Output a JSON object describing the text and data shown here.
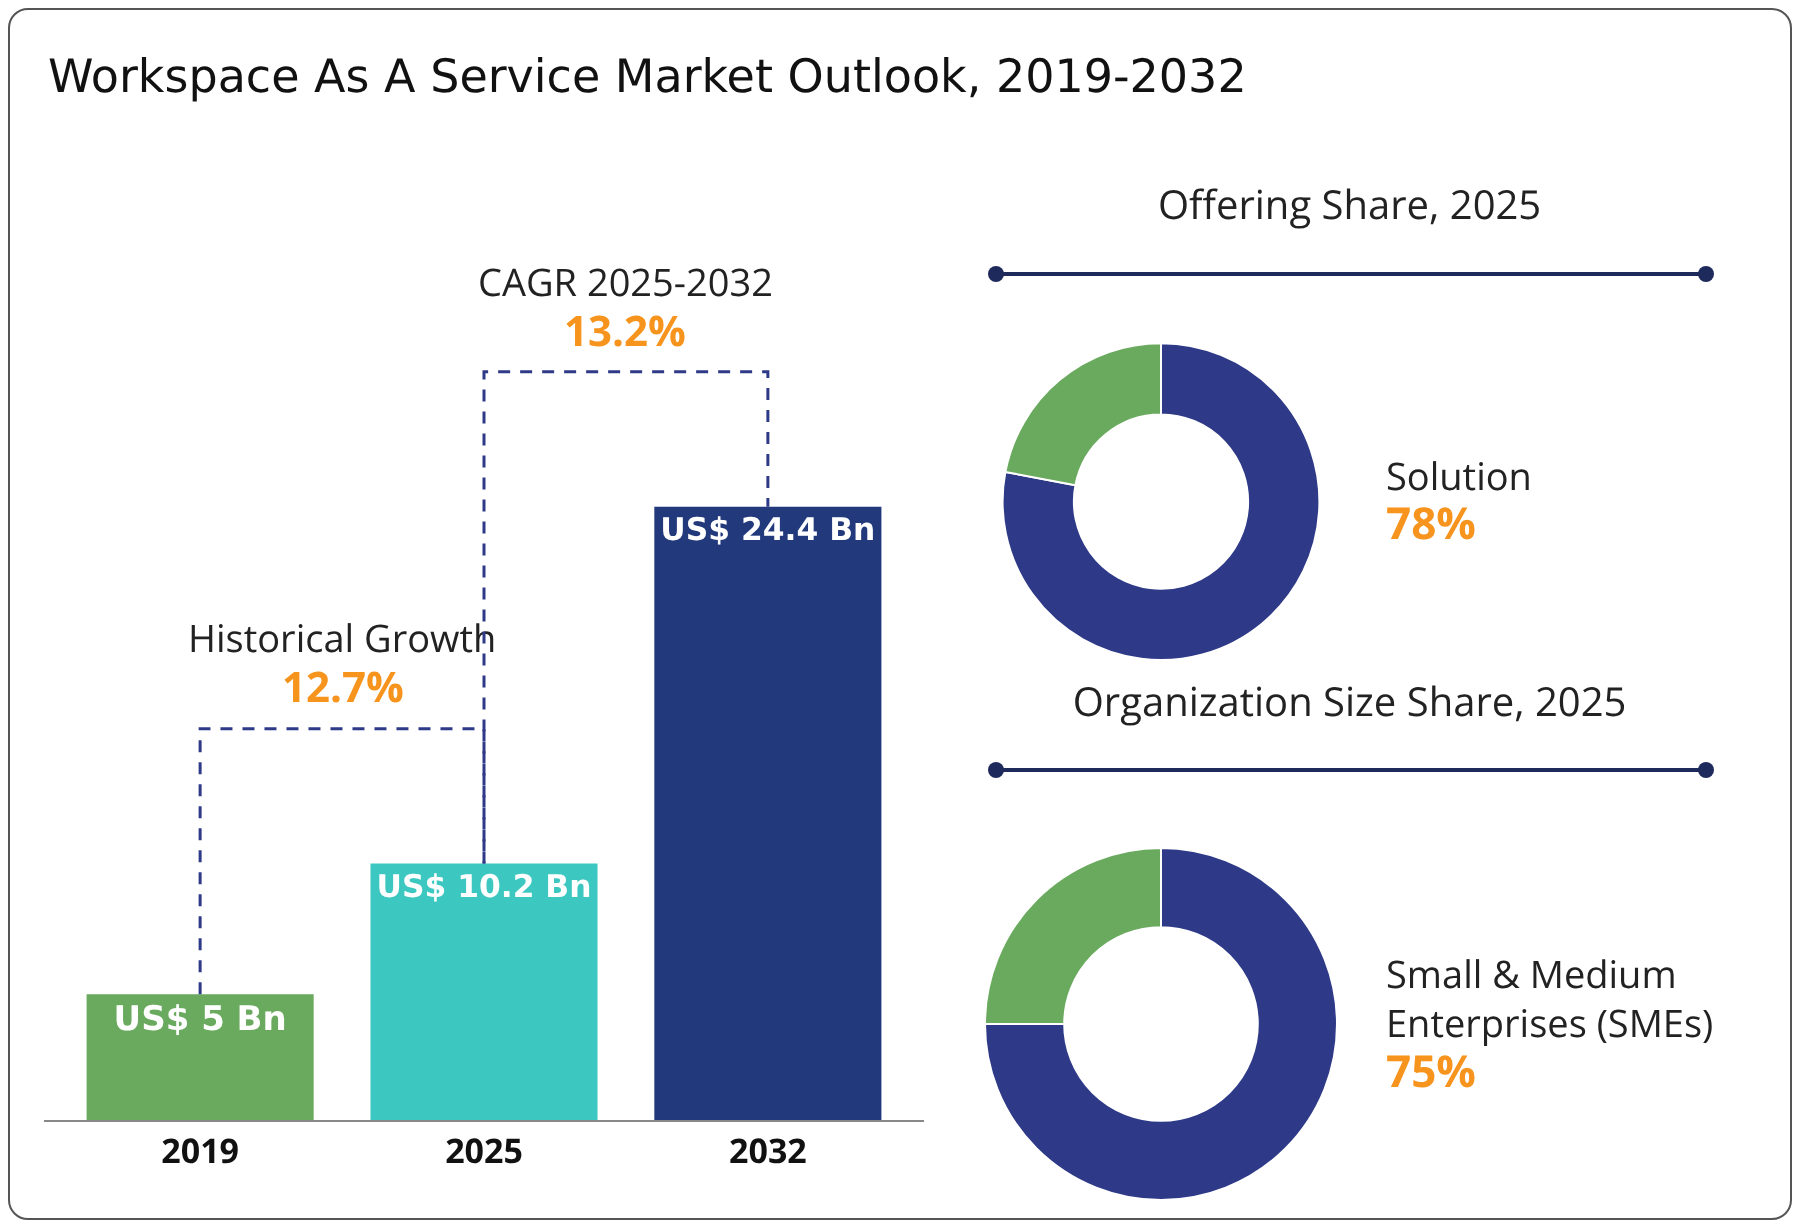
{
  "chart_data": [
    {
      "type": "bar",
      "title": "Workspace As A Service Market Outlook, 2019-2032",
      "categories": [
        "2019",
        "2025",
        "2032"
      ],
      "values": [
        5,
        10.2,
        24.4
      ],
      "colors": [
        "#6aaa5e",
        "#3cc7c0",
        "#223a7c"
      ],
      "value_labels": [
        "US$ 5 Bn",
        "US$ 10.2 Bn",
        "US$ 24.4 Bn"
      ],
      "annotations": [
        "Historical Growth",
        "12.7%",
        "CAGR 2025-2032",
        "13.2%"
      ]
    },
    {
      "type": "donut",
      "title": "Offering Share, 2025",
      "categories": [
        "Solution",
        null
      ],
      "values": [
        78,
        22
      ],
      "colors": [
        "#2e3a87",
        "#6aaa5e"
      ],
      "value_labels": [
        "78%",
        null
      ]
    },
    {
      "type": "donut",
      "title": "Organization Size Share, 2025",
      "categories": [
        "Small & Medium Enterprises (SMEs)",
        null
      ],
      "values": [
        75,
        25
      ],
      "colors": [
        "#2e3a87",
        "#6aaa5e"
      ],
      "value_labels": [
        "75%",
        null
      ]
    }
  ]
}
